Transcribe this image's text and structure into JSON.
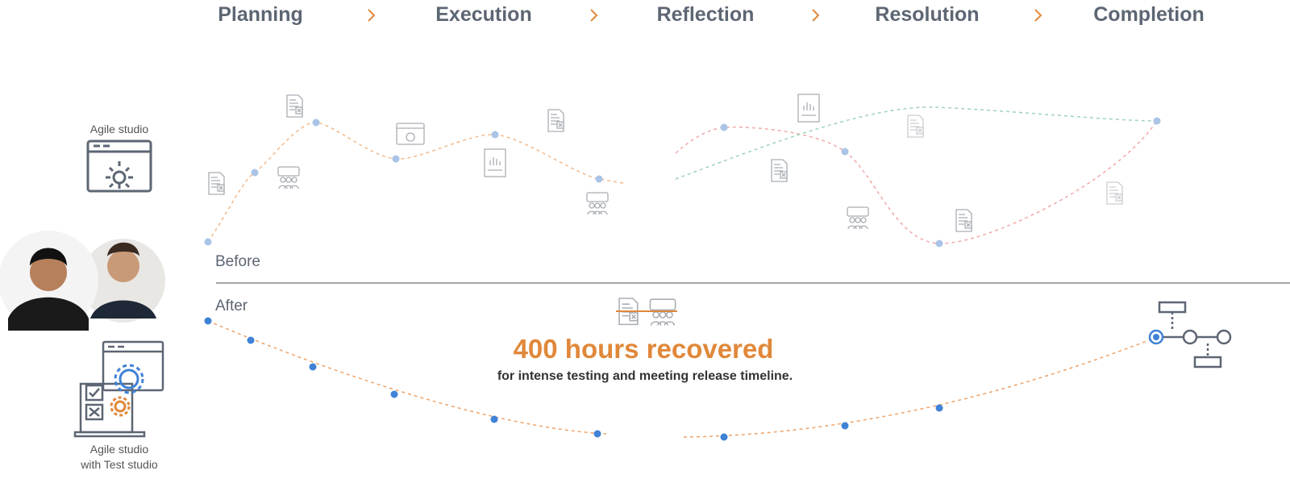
{
  "stages": [
    "Planning",
    "Execution",
    "Reflection",
    "Resolution",
    "Completion"
  ],
  "top_tool": {
    "label": "Agile studio"
  },
  "before_label": "Before",
  "after_label": "After",
  "headline": "400 hours recovered",
  "subline": "for intense testing and meeting release timeline.",
  "bottom_tool": {
    "label_lines": [
      "Agile studio",
      "with Test studio"
    ]
  }
}
